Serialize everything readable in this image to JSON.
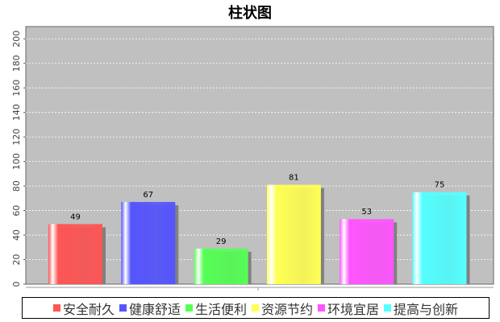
{
  "chart_data": {
    "type": "bar",
    "title": "柱状图",
    "xlabel": "",
    "ylabel": "",
    "ylim": [
      0,
      210
    ],
    "yticks": [
      0,
      20,
      40,
      60,
      80,
      100,
      120,
      140,
      160,
      180,
      200
    ],
    "grid": true,
    "legend_placement": "bottom",
    "series": [
      {
        "name": "安全耐久",
        "values": [
          49
        ],
        "color": "#ff5555"
      },
      {
        "name": "健康舒适",
        "values": [
          67
        ],
        "color": "#5555ff"
      },
      {
        "name": "生活便利",
        "values": [
          29
        ],
        "color": "#55ff55"
      },
      {
        "name": "资源节约",
        "values": [
          81
        ],
        "color": "#ffff55"
      },
      {
        "name": "环境宜居",
        "values": [
          53
        ],
        "color": "#ff55ff"
      },
      {
        "name": "提高与创新",
        "values": [
          75
        ],
        "color": "#55ffff"
      }
    ],
    "plot_background": "#c0c0c0"
  }
}
